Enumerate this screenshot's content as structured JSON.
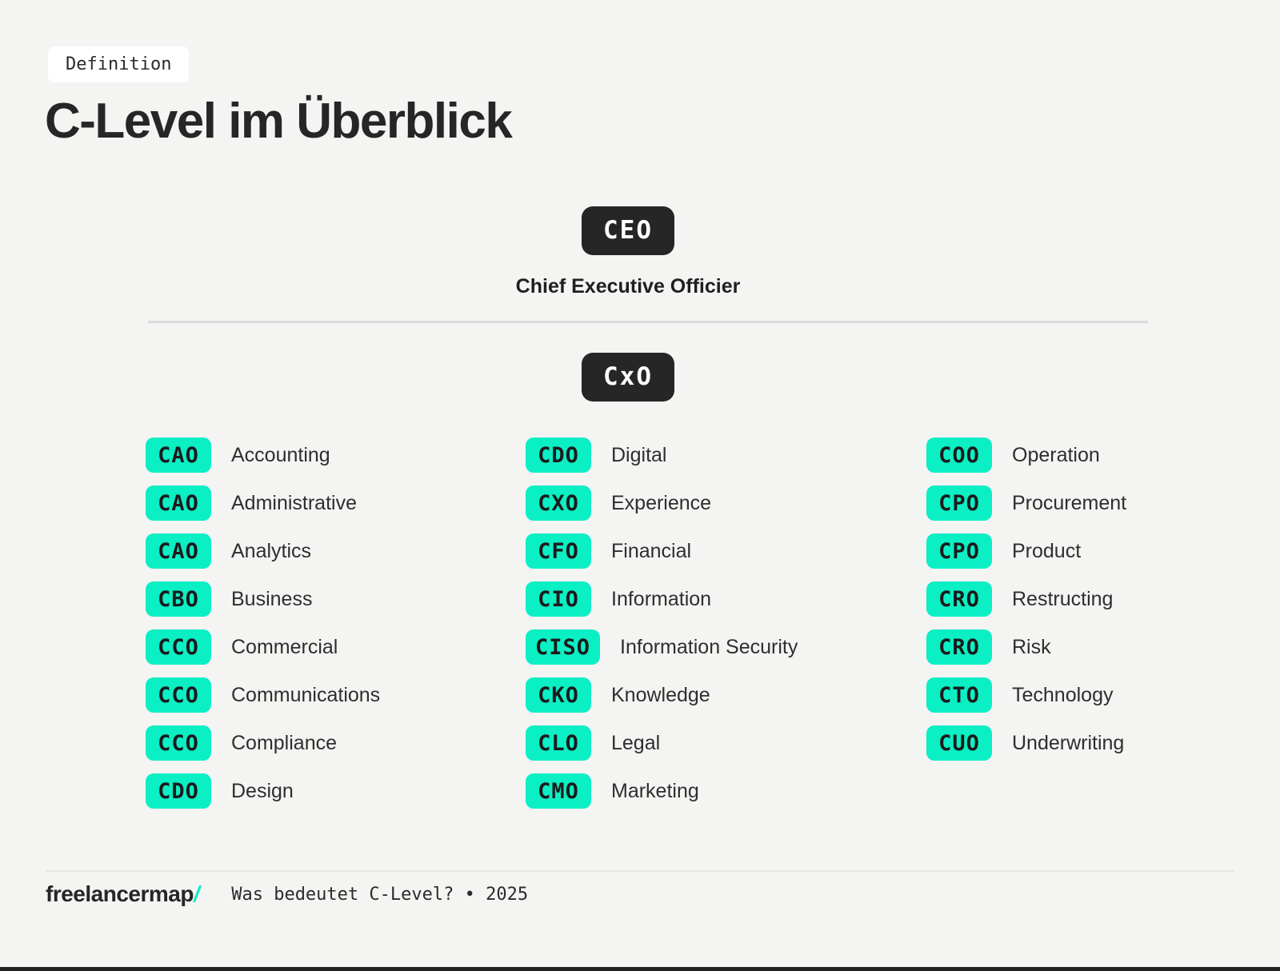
{
  "header": {
    "tag": "Definition",
    "title": "C-Level im Überblick"
  },
  "hierarchy": {
    "ceo": {
      "abbr": "CEO",
      "full_title": "Chief Executive Officier"
    },
    "cxo": {
      "abbr": "CxO"
    }
  },
  "columns": {
    "col1": [
      {
        "abbr": "CAO",
        "label": "Accounting"
      },
      {
        "abbr": "CAO",
        "label": "Administrative"
      },
      {
        "abbr": "CAO",
        "label": "Analytics"
      },
      {
        "abbr": "CBO",
        "label": "Business"
      },
      {
        "abbr": "CCO",
        "label": "Commercial"
      },
      {
        "abbr": "CCO",
        "label": "Communications"
      },
      {
        "abbr": "CCO",
        "label": "Compliance"
      },
      {
        "abbr": "CDO",
        "label": "Design"
      }
    ],
    "col2": [
      {
        "abbr": "CDO",
        "label": "Digital"
      },
      {
        "abbr": "CXO",
        "label": "Experience"
      },
      {
        "abbr": "CFO",
        "label": "Financial"
      },
      {
        "abbr": "CIO",
        "label": "Information"
      },
      {
        "abbr": "CISO",
        "label": "Information Security"
      },
      {
        "abbr": "CKO",
        "label": "Knowledge"
      },
      {
        "abbr": "CLO",
        "label": "Legal"
      },
      {
        "abbr": "CMO",
        "label": "Marketing"
      }
    ],
    "col3": [
      {
        "abbr": "COO",
        "label": "Operation"
      },
      {
        "abbr": "CPO",
        "label": "Procurement"
      },
      {
        "abbr": "CPO",
        "label": "Product"
      },
      {
        "abbr": "CRO",
        "label": "Restructing"
      },
      {
        "abbr": "CRO",
        "label": "Risk"
      },
      {
        "abbr": "CTO",
        "label": "Technology"
      },
      {
        "abbr": "CUO",
        "label": "Underwriting"
      }
    ]
  },
  "footer": {
    "brand": "freelancermap",
    "brand_slash": "/",
    "caption": "Was bedeutet C-Level? • 2025"
  },
  "colors": {
    "accent_teal": "#0BEFC5",
    "badge_dark": "#262626",
    "background": "#F4F4F2"
  }
}
